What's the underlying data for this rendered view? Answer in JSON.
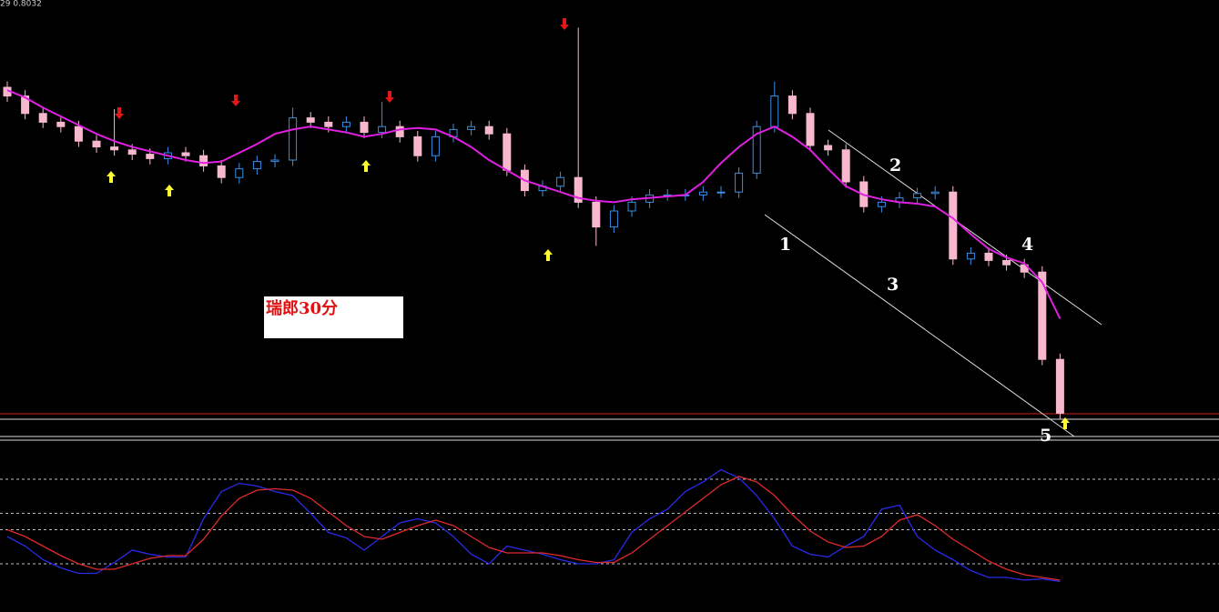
{
  "chart_data": [
    {
      "type": "candlestick",
      "title": "瑞郎30分",
      "info": "29 0.8032",
      "annotations": [
        "1",
        "2",
        "3",
        "4",
        "5"
      ],
      "ylim": [
        0.78,
        0.81
      ],
      "up_color": "#3a8ee6",
      "down_color": "#f7b8cf",
      "open": [
        0.804,
        0.8034,
        0.8022,
        0.8016,
        0.8013,
        0.8003,
        0.7999,
        0.7997,
        0.7994,
        0.7991,
        0.7995,
        0.7993,
        0.7986,
        0.7978,
        0.7984,
        0.7989,
        0.799,
        0.8019,
        0.8016,
        0.8013,
        0.8016,
        0.8009,
        0.8013,
        0.8006,
        0.7993,
        0.8006,
        0.8011,
        0.8013,
        0.8008,
        0.7983,
        0.7969,
        0.7972,
        0.7978,
        0.7961,
        0.7944,
        0.7955,
        0.7961,
        0.7966,
        0.7966,
        0.7966,
        0.7968,
        0.7968,
        0.7981,
        0.8013,
        0.8034,
        0.8022,
        0.8,
        0.7997,
        0.7975,
        0.7958,
        0.7961,
        0.7964,
        0.7967,
        0.7968,
        0.7922,
        0.7926,
        0.7921,
        0.7918,
        0.7913,
        0.7853
      ],
      "high": [
        0.8044,
        0.8038,
        0.8026,
        0.802,
        0.8017,
        0.8007,
        0.8025,
        0.8001,
        0.7998,
        0.7999,
        0.7999,
        0.7997,
        0.799,
        0.7988,
        0.7993,
        0.7994,
        0.8026,
        0.8023,
        0.802,
        0.802,
        0.802,
        0.803,
        0.8017,
        0.801,
        0.801,
        0.8015,
        0.8017,
        0.8017,
        0.8012,
        0.7987,
        0.7976,
        0.7982,
        0.8081,
        0.7965,
        0.7959,
        0.7965,
        0.797,
        0.797,
        0.797,
        0.7972,
        0.7972,
        0.7985,
        0.8017,
        0.8044,
        0.8038,
        0.8026,
        0.8004,
        0.8001,
        0.7979,
        0.7965,
        0.7968,
        0.7971,
        0.7972,
        0.7972,
        0.793,
        0.793,
        0.7925,
        0.7922,
        0.7917,
        0.7857
      ],
      "low": [
        0.803,
        0.8018,
        0.8012,
        0.8009,
        0.7999,
        0.7995,
        0.7993,
        0.799,
        0.7987,
        0.7987,
        0.7989,
        0.7982,
        0.7974,
        0.7974,
        0.798,
        0.7985,
        0.7986,
        0.8012,
        0.8009,
        0.8009,
        0.8005,
        0.8005,
        0.8002,
        0.7989,
        0.7989,
        0.8002,
        0.8007,
        0.8004,
        0.7979,
        0.7965,
        0.7965,
        0.7968,
        0.7957,
        0.7931,
        0.794,
        0.7951,
        0.7957,
        0.7962,
        0.7962,
        0.7962,
        0.7964,
        0.7964,
        0.7977,
        0.8009,
        0.8018,
        0.7996,
        0.7993,
        0.7971,
        0.7954,
        0.7954,
        0.7957,
        0.796,
        0.7963,
        0.7918,
        0.7918,
        0.7917,
        0.7914,
        0.7909,
        0.7849,
        0.7812
      ],
      "close": [
        0.8034,
        0.8022,
        0.8016,
        0.8013,
        0.8003,
        0.7999,
        0.7997,
        0.7994,
        0.7991,
        0.7995,
        0.7993,
        0.7986,
        0.7978,
        0.7984,
        0.7989,
        0.799,
        0.8019,
        0.8016,
        0.8013,
        0.8016,
        0.8009,
        0.8013,
        0.8006,
        0.7993,
        0.8006,
        0.8011,
        0.8013,
        0.8008,
        0.7983,
        0.7969,
        0.7972,
        0.7978,
        0.7961,
        0.7944,
        0.7955,
        0.7961,
        0.7966,
        0.7966,
        0.7966,
        0.7968,
        0.7968,
        0.7981,
        0.8013,
        0.8034,
        0.8022,
        0.8,
        0.7997,
        0.7975,
        0.7958,
        0.7961,
        0.7964,
        0.7967,
        0.7968,
        0.7922,
        0.7926,
        0.7921,
        0.7918,
        0.7913,
        0.7853,
        0.7816
      ],
      "series": [
        {
          "color": "#e020e0",
          "values": [
            0.8038,
            0.8033,
            0.8026,
            0.802,
            0.8014,
            0.8008,
            0.8003,
            0.7999,
            0.7996,
            0.7993,
            0.799,
            0.7988,
            0.7989,
            0.7995,
            0.8001,
            0.8008,
            0.8011,
            0.8013,
            0.8011,
            0.8009,
            0.8006,
            0.8008,
            0.8011,
            0.8012,
            0.8011,
            0.8006,
            0.7999,
            0.799,
            0.7983,
            0.7976,
            0.7972,
            0.7968,
            0.7964,
            0.7962,
            0.7961,
            0.7963,
            0.7964,
            0.7965,
            0.7966,
            0.7975,
            0.7988,
            0.7999,
            0.8008,
            0.8013,
            0.8006,
            0.7997,
            0.7984,
            0.7972,
            0.7966,
            0.7963,
            0.7961,
            0.796,
            0.7958,
            0.795,
            0.7939,
            0.7929,
            0.7923,
            0.7919,
            0.7906,
            0.7881
          ]
        }
      ]
    },
    {
      "type": "line",
      "ylim": [
        0,
        100
      ],
      "levels": [
        82,
        57,
        45,
        20
      ],
      "series": [
        {
          "color": "#2a2ae8",
          "values": [
            40,
            33,
            23,
            17,
            13,
            13,
            21,
            30,
            27,
            25,
            25,
            53,
            73,
            79,
            77,
            73,
            70,
            57,
            43,
            39,
            30,
            40,
            50,
            53,
            50,
            40,
            27,
            20,
            33,
            30,
            27,
            23,
            20,
            20,
            23,
            43,
            53,
            60,
            73,
            80,
            89,
            83,
            70,
            53,
            33,
            27,
            25,
            33,
            40,
            60,
            63,
            40,
            30,
            23,
            15,
            10,
            10,
            8,
            9,
            7
          ]
        },
        {
          "color": "#e02a2a",
          "values": [
            45,
            40,
            33,
            26,
            20,
            16,
            16,
            20,
            24,
            26,
            26,
            38,
            55,
            68,
            74,
            75,
            74,
            68,
            58,
            48,
            40,
            38,
            43,
            48,
            52,
            48,
            40,
            32,
            28,
            28,
            28,
            26,
            23,
            21,
            21,
            28,
            38,
            48,
            58,
            68,
            78,
            84,
            80,
            70,
            56,
            44,
            36,
            32,
            33,
            40,
            52,
            56,
            48,
            38,
            30,
            22,
            16,
            12,
            10,
            8
          ]
        }
      ]
    }
  ]
}
